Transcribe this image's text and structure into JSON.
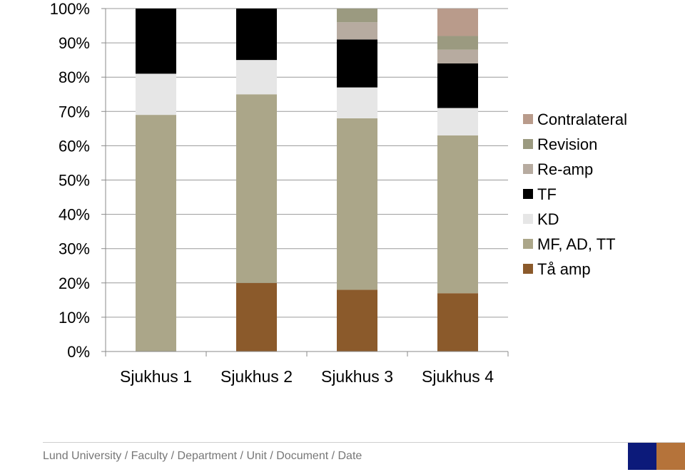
{
  "chart_data": {
    "type": "bar",
    "stacked": true,
    "percent": true,
    "categories": [
      "Sjukhus 1",
      "Sjukhus 2",
      "Sjukhus 3",
      "Sjukhus 4"
    ],
    "ylim": [
      0,
      100
    ],
    "yticks": [
      "0%",
      "10%",
      "20%",
      "30%",
      "40%",
      "50%",
      "60%",
      "70%",
      "80%",
      "90%",
      "100%"
    ],
    "grid": true,
    "legend_position": "right",
    "series": [
      {
        "name": "Tå amp",
        "color": "#8b5a2b",
        "values": [
          0,
          20,
          18,
          17
        ]
      },
      {
        "name": "MF, AD, TT",
        "color": "#aba689",
        "values": [
          69,
          55,
          50,
          46
        ]
      },
      {
        "name": "KD",
        "color": "#e6e6e6",
        "values": [
          12,
          10,
          9,
          8
        ]
      },
      {
        "name": "TF",
        "color": "#000000",
        "values": [
          19,
          15,
          14,
          13
        ]
      },
      {
        "name": "Re-amp",
        "color": "#b7aba0",
        "values": [
          0,
          0,
          5,
          4
        ]
      },
      {
        "name": "Revision",
        "color": "#9b9a80",
        "values": [
          0,
          0,
          4,
          4
        ]
      },
      {
        "name": "Contralateral",
        "color": "#b99b8b",
        "values": [
          0,
          0,
          0,
          8
        ]
      }
    ]
  },
  "footer": {
    "text": "Lund University / Faculty / Department / Unit / Document / Date",
    "logo_colors": [
      "#0c1a7a",
      "#b5733a"
    ]
  }
}
